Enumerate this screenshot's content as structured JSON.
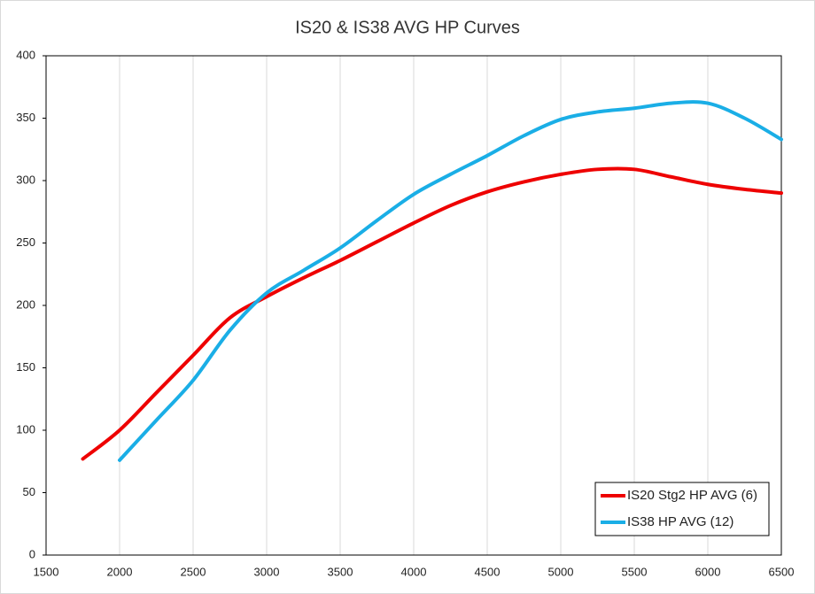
{
  "chart_data": {
    "type": "line",
    "title": "IS20 & IS38 AVG HP Curves",
    "xlim": [
      1500,
      6500
    ],
    "xticks": [
      1500,
      2000,
      2500,
      3000,
      3500,
      4000,
      4500,
      5000,
      5500,
      6000,
      6500
    ],
    "ylim": [
      0,
      400
    ],
    "yticks": [
      0,
      50,
      100,
      150,
      200,
      250,
      300,
      350,
      400
    ],
    "grid": "x",
    "legend": "lower right",
    "series": [
      {
        "name": "IS20 Stg2 HP AVG (6)",
        "color": "#ee0000",
        "x": [
          1750,
          2000,
          2250,
          2500,
          2750,
          3000,
          3250,
          3500,
          3750,
          4000,
          4250,
          4500,
          4750,
          5000,
          5250,
          5500,
          5750,
          6000,
          6250,
          6500
        ],
        "values": [
          77,
          100,
          130,
          160,
          190,
          207,
          222,
          236,
          251,
          266,
          280,
          291,
          299,
          305,
          309,
          309,
          303,
          297,
          293,
          290
        ]
      },
      {
        "name": "IS38 HP AVG (12)",
        "color": "#1aaee6",
        "x": [
          2000,
          2250,
          2500,
          2750,
          3000,
          3250,
          3500,
          3750,
          4000,
          4250,
          4500,
          4750,
          5000,
          5250,
          5500,
          5750,
          6000,
          6250,
          6500
        ],
        "values": [
          76,
          108,
          140,
          180,
          210,
          228,
          246,
          268,
          289,
          305,
          320,
          336,
          349,
          355,
          358,
          362,
          362,
          350,
          333
        ]
      }
    ]
  }
}
